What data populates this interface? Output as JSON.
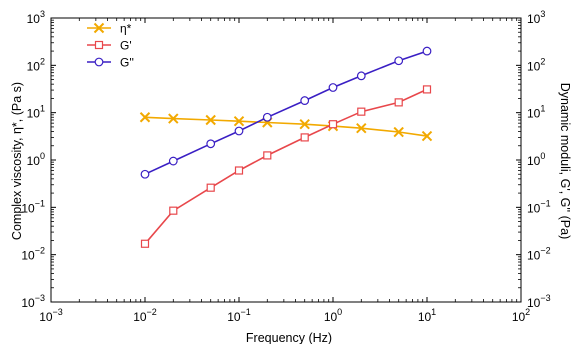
{
  "chart_data": {
    "type": "line",
    "xlabel": "Frequency (Hz)",
    "ylabel_left": "Complex viscosity, η*, (Pa s)",
    "ylabel_right": "Dynamic moduli, G', G'' (Pa)",
    "x_scale": "log",
    "y_scale": "log",
    "xlim": [
      0.001,
      100
    ],
    "ylim": [
      0.001,
      1000
    ],
    "x_ticks": [
      {
        "value": 0.001,
        "base": "10",
        "exp": "−3"
      },
      {
        "value": 0.01,
        "base": "10",
        "exp": "−2"
      },
      {
        "value": 0.1,
        "base": "10",
        "exp": "−1"
      },
      {
        "value": 1,
        "base": "10",
        "exp": "0"
      },
      {
        "value": 10,
        "base": "10",
        "exp": "1"
      },
      {
        "value": 100,
        "base": "10",
        "exp": "2"
      }
    ],
    "y_ticks": [
      {
        "value": 0.001,
        "base": "10",
        "exp": "−3"
      },
      {
        "value": 0.01,
        "base": "10",
        "exp": "−2"
      },
      {
        "value": 0.1,
        "base": "10",
        "exp": "−1"
      },
      {
        "value": 1,
        "base": "10",
        "exp": "0"
      },
      {
        "value": 10,
        "base": "10",
        "exp": "1"
      },
      {
        "value": 100,
        "base": "10",
        "exp": "2"
      },
      {
        "value": 1000,
        "base": "10",
        "exp": "3"
      }
    ],
    "grid": false,
    "legend_position": "top-left",
    "x": [
      0.01,
      0.02,
      0.05,
      0.1,
      0.2,
      0.5,
      1,
      2,
      5,
      10
    ],
    "series": [
      {
        "name": "η*",
        "axis": "left",
        "marker": "x",
        "color": "#F2A900",
        "values": [
          8.0,
          7.5,
          7.0,
          6.6,
          6.2,
          5.7,
          5.2,
          4.7,
          3.9,
          3.2
        ]
      },
      {
        "name": "G'",
        "axis": "right",
        "marker": "square",
        "color": "#E8474B",
        "values": [
          0.017,
          0.085,
          0.26,
          0.6,
          1.25,
          3.0,
          5.7,
          10.5,
          16.5,
          31
        ]
      },
      {
        "name": "G''",
        "axis": "right",
        "marker": "circle",
        "color": "#3A1FC4",
        "values": [
          0.5,
          0.95,
          2.2,
          4.1,
          8.0,
          18,
          34,
          60,
          125,
          200
        ]
      }
    ]
  }
}
